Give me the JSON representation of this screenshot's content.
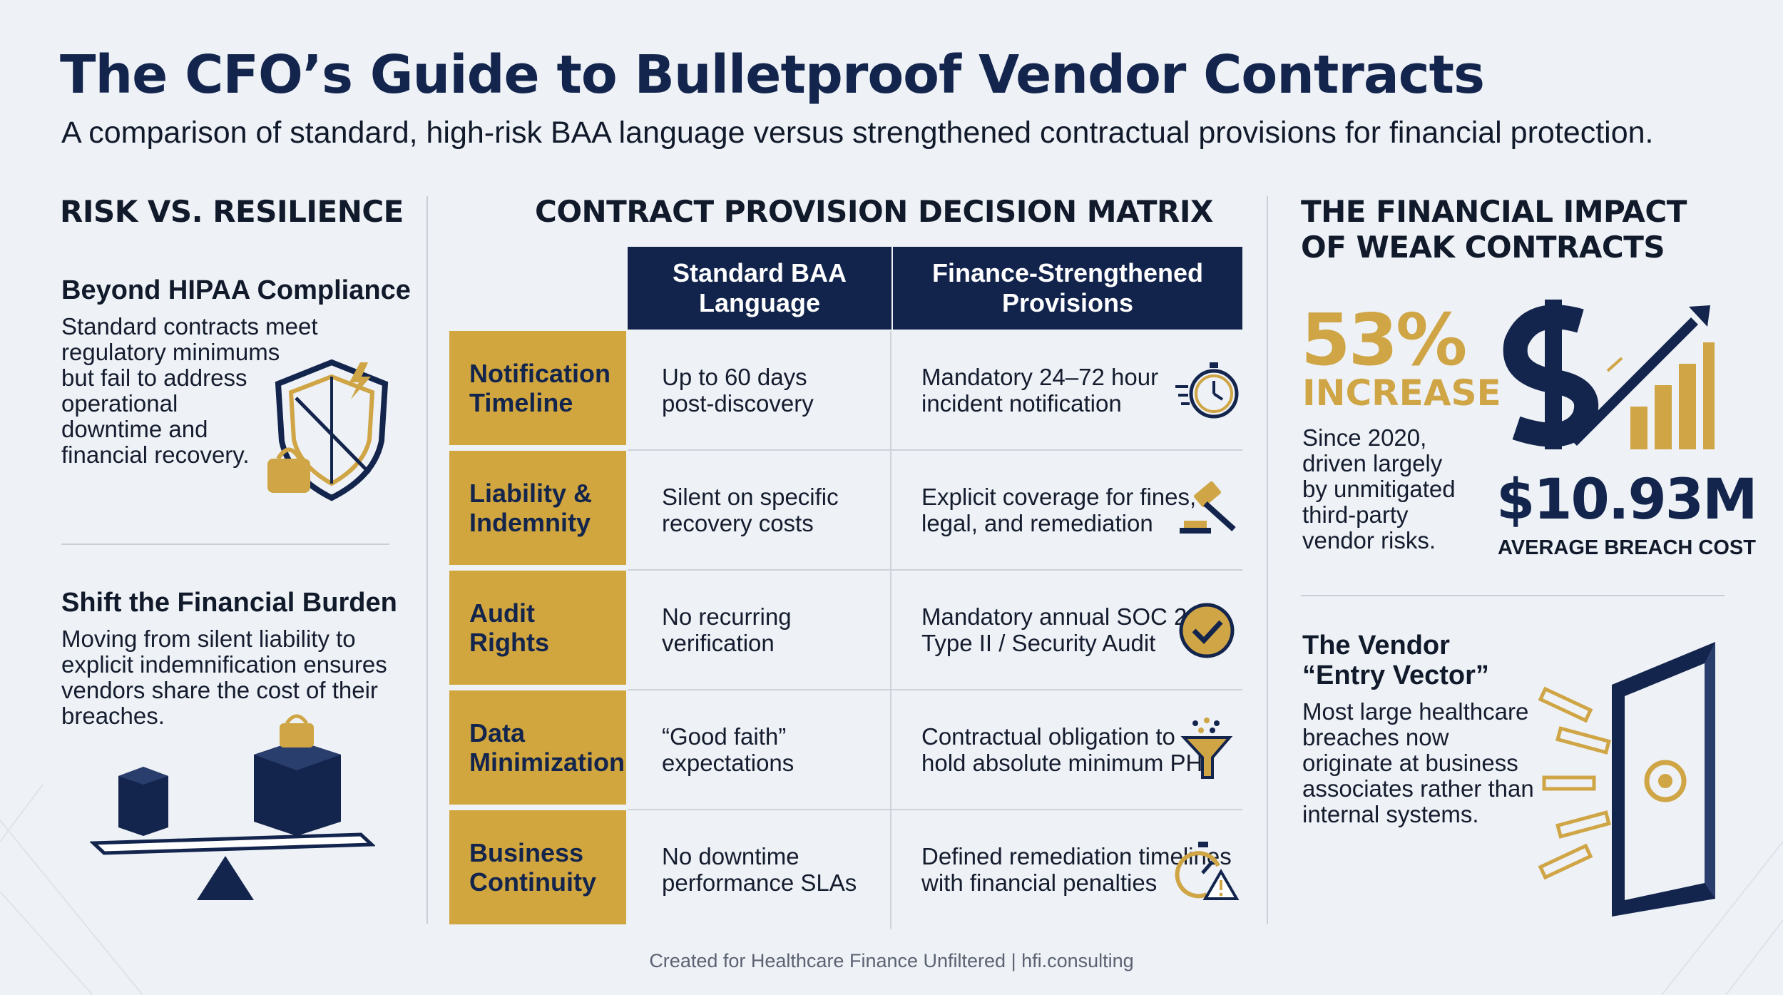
{
  "title": "The CFO’s Guide to Bulletproof Vendor Contracts",
  "subtitle": "A comparison of standard, high-risk BAA language versus strengthened contractual provisions for financial protection.",
  "left": {
    "heading": "RISK VS. RESILIENCE",
    "block1": {
      "title": "Beyond HIPAA Compliance",
      "lines": [
        "Standard contracts meet",
        "regulatory minimums",
        "but fail to address",
        "operational",
        "downtime and",
        "financial recovery."
      ]
    },
    "block2": {
      "title": "Shift the Financial Burden",
      "lines": [
        "Moving from silent liability to",
        "explicit indemnification ensures",
        "vendors share the cost of their",
        "breaches."
      ]
    }
  },
  "matrix": {
    "heading": "CONTRACT PROVISION DECISION MATRIX",
    "col_standard": [
      "Standard BAA",
      "Language"
    ],
    "col_finance": [
      "Finance-Strengthened",
      "Provisions"
    ],
    "rows": [
      {
        "label": [
          "Notification",
          "Timeline"
        ],
        "standard": [
          "Up to 60 days",
          "post-discovery"
        ],
        "finance": [
          "Mandatory 24–72 hour",
          "incident notification"
        ],
        "icon": "stopwatch-icon"
      },
      {
        "label": [
          "Liability &",
          "Indemnity"
        ],
        "standard": [
          "Silent on specific",
          "recovery costs"
        ],
        "finance": [
          "Explicit coverage for fines,",
          "legal, and remediation"
        ],
        "icon": "gavel-icon"
      },
      {
        "label": [
          "Audit",
          "Rights"
        ],
        "standard": [
          "No recurring",
          "verification"
        ],
        "finance": [
          "Mandatory annual SOC 2",
          "Type II / Security Audit"
        ],
        "icon": "check-circle-icon"
      },
      {
        "label": [
          "Data",
          "Minimization"
        ],
        "standard": [
          "“Good faith”",
          "expectations"
        ],
        "finance": [
          "Contractual obligation to",
          "hold absolute minimum PHI"
        ],
        "icon": "funnel-icon"
      },
      {
        "label": [
          "Business",
          "Continuity"
        ],
        "standard": [
          "No downtime",
          "performance SLAs"
        ],
        "finance": [
          "Defined remediation timelines",
          "with financial penalties"
        ],
        "icon": "timer-warning-icon"
      }
    ]
  },
  "right": {
    "heading": [
      "THE FINANCIAL IMPACT",
      "OF WEAK CONTRACTS"
    ],
    "stat_value": "53%",
    "stat_label": "INCREASE",
    "stat_lines": [
      "Since 2020,",
      "driven largely",
      "by unmitigated",
      "third-party",
      "vendor risks."
    ],
    "cost_value": "$10.93M",
    "cost_label": "AVERAGE BREACH COST",
    "vector_title": [
      "The Vendor",
      "“Entry Vector”"
    ],
    "vector_lines": [
      "Most large healthcare",
      "breaches now",
      "originate at business",
      "associates rather than",
      "internal systems."
    ]
  },
  "footer": "Created for Healthcare Finance Unfiltered | hfi.consulting",
  "colors": {
    "navy": "#12244c",
    "gold": "#d2a63e",
    "background": "#eef1f6"
  }
}
